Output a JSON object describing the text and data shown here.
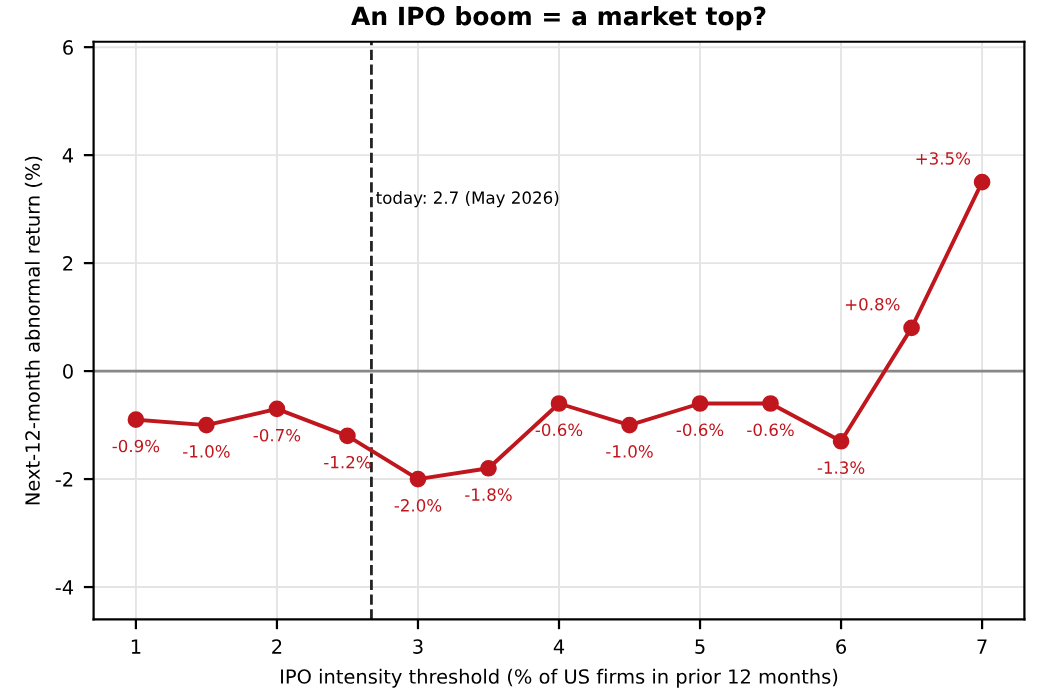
{
  "chart_data": {
    "type": "line",
    "title": "An IPO boom = a market top?",
    "xlabel": "IPO intensity threshold (% of US firms in prior 12 months)",
    "ylabel": "Next-12-month abnormal return (%)",
    "x": [
      1,
      1.5,
      2,
      2.5,
      3,
      3.5,
      4,
      4.5,
      5,
      5.5,
      6,
      6.5,
      7
    ],
    "series": [
      {
        "color": "#c0161e",
        "values": [
          -0.9,
          -1.0,
          -0.7,
          -1.2,
          -2.0,
          -1.8,
          -0.6,
          -1.0,
          -0.6,
          -0.6,
          -1.3,
          0.8,
          3.5
        ],
        "value_labels": [
          "-0.9%",
          "-1.0%",
          "-0.7%",
          "-1.2%",
          "-2.0%",
          "-1.8%",
          "-0.6%",
          "-1.0%",
          "-0.6%",
          "-0.6%",
          "-1.3%",
          "+0.8%",
          "+3.5%"
        ]
      }
    ],
    "xlim": [
      0.7,
      7.3
    ],
    "ylim": [
      -4.6,
      6.1
    ],
    "xticks": [
      1,
      2,
      3,
      4,
      5,
      6,
      7
    ],
    "yticks": [
      -4,
      -2,
      0,
      2,
      4,
      6
    ],
    "ref_lines": [
      {
        "axis": "y",
        "value": 0,
        "color": "#888888",
        "line_style": "solid"
      },
      {
        "axis": "x",
        "value": 2.67,
        "label": "today: 2.7 (May 2026)",
        "color": "#222222",
        "line_style": "dashed"
      }
    ],
    "grid": true,
    "marker": "circle",
    "line_style": "solid",
    "legend": false
  }
}
